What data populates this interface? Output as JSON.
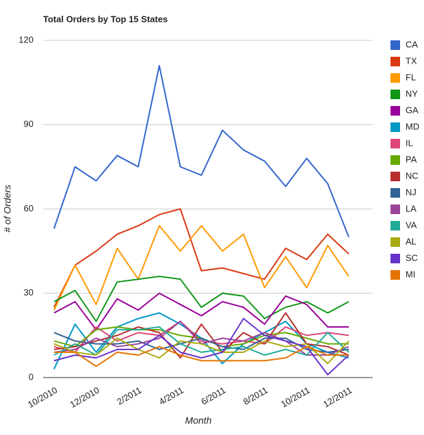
{
  "chart_data": {
    "type": "line",
    "title": "Total Orders by Top 15 States",
    "x_label": "Month",
    "y_label": "# of Orders",
    "categories": [
      "10/2010",
      null,
      "12/2010",
      null,
      "2/2011",
      null,
      "4/2011",
      null,
      "6/2011",
      null,
      "8/2011",
      null,
      "10/2011",
      null,
      "12/2011"
    ],
    "ylim": [
      0,
      120
    ],
    "yticks": [
      0,
      30,
      60,
      90,
      120
    ],
    "grid": true,
    "legend": "right",
    "series": [
      {
        "name": "CA",
        "color": "#3366cc",
        "values": [
          53,
          75,
          70,
          79,
          75,
          111,
          75,
          72,
          88,
          81,
          77,
          68,
          78,
          69,
          50
        ]
      },
      {
        "name": "TX",
        "color": "#dc3912",
        "values": [
          25,
          40,
          45,
          51,
          54,
          58,
          60,
          38,
          39,
          37,
          35,
          46,
          42,
          51,
          44
        ]
      },
      {
        "name": "FL",
        "color": "#ff9900",
        "values": [
          24,
          40,
          26,
          46,
          35,
          54,
          45,
          54,
          45,
          51,
          32,
          43,
          32,
          47,
          36
        ]
      },
      {
        "name": "NY",
        "color": "#109618",
        "values": [
          27,
          31,
          20,
          34,
          35,
          36,
          35,
          25,
          30,
          29,
          21,
          25,
          27,
          23,
          27
        ]
      },
      {
        "name": "GA",
        "color": "#990099",
        "values": [
          23,
          27,
          17,
          28,
          24,
          30,
          26,
          22,
          27,
          25,
          19,
          29,
          26,
          18,
          18
        ]
      },
      {
        "name": "MD",
        "color": "#0099c6",
        "values": [
          3,
          19,
          9,
          18,
          21,
          23,
          19,
          14,
          5,
          12,
          16,
          20,
          12,
          9,
          7
        ]
      },
      {
        "name": "IL",
        "color": "#dd4477",
        "values": [
          11,
          9,
          18,
          13,
          16,
          15,
          20,
          13,
          12,
          13,
          12,
          18,
          15,
          16,
          15
        ]
      },
      {
        "name": "PA",
        "color": "#66aa00",
        "values": [
          13,
          11,
          17,
          18,
          17,
          17,
          15,
          14,
          11,
          12,
          15,
          16,
          14,
          12,
          12
        ]
      },
      {
        "name": "NC",
        "color": "#b82e2e",
        "values": [
          10,
          11,
          13,
          15,
          18,
          16,
          7,
          19,
          9,
          16,
          12,
          23,
          12,
          11,
          8
        ]
      },
      {
        "name": "NJ",
        "color": "#316395",
        "values": [
          16,
          13,
          12,
          12,
          13,
          10,
          12,
          14,
          11,
          10,
          14,
          14,
          10,
          9,
          10
        ]
      },
      {
        "name": "LA",
        "color": "#994499",
        "values": [
          9,
          10,
          14,
          11,
          12,
          14,
          20,
          12,
          14,
          13,
          16,
          13,
          8,
          8,
          11
        ]
      },
      {
        "name": "VA",
        "color": "#22aa99",
        "values": [
          8,
          12,
          8,
          17,
          17,
          18,
          12,
          9,
          10,
          11,
          8,
          10,
          8,
          16,
          9
        ]
      },
      {
        "name": "AL",
        "color": "#aaaa11",
        "values": [
          12,
          9,
          8,
          14,
          10,
          7,
          13,
          12,
          9,
          9,
          13,
          11,
          12,
          5,
          13
        ]
      },
      {
        "name": "SC",
        "color": "#6633cc",
        "values": [
          6,
          8,
          7,
          10,
          10,
          15,
          9,
          7,
          9,
          21,
          15,
          13,
          11,
          1,
          8
        ]
      },
      {
        "name": "MI",
        "color": "#e67300",
        "values": [
          9,
          9,
          4,
          9,
          8,
          11,
          8,
          6,
          6,
          6,
          6,
          7,
          11,
          8,
          8
        ]
      }
    ]
  }
}
